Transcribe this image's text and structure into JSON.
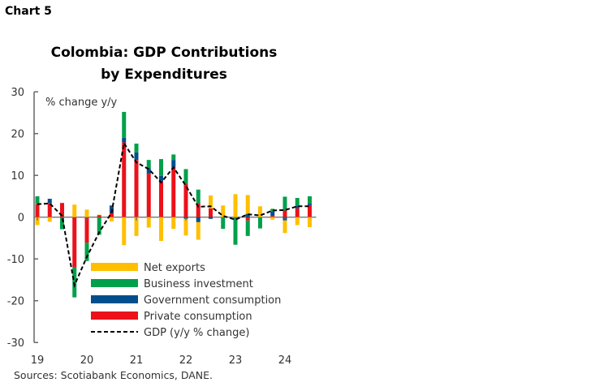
{
  "header": {
    "chart_label": "Chart 5"
  },
  "footer": {
    "sources": "Sources: Scotiabank Economics, DANE."
  },
  "chart_data": {
    "type": "bar",
    "stacked": true,
    "title_lines": [
      "Colombia: GDP Contributions",
      "by Expenditures"
    ],
    "ylabel": "% change y/y",
    "ylim": [
      -30,
      30
    ],
    "yticks": [
      30,
      20,
      10,
      0,
      -10,
      -20,
      -30
    ],
    "xtick_labels": [
      {
        "index": 0,
        "label": "19"
      },
      {
        "index": 4,
        "label": "20"
      },
      {
        "index": 8,
        "label": "21"
      },
      {
        "index": 12,
        "label": "22"
      },
      {
        "index": 16,
        "label": "23"
      },
      {
        "index": 20,
        "label": "24"
      }
    ],
    "categories": [
      "2019Q1",
      "2019Q2",
      "2019Q3",
      "2019Q4",
      "2020Q1",
      "2020Q2",
      "2020Q3",
      "2020Q4",
      "2021Q1",
      "2021Q2",
      "2021Q3",
      "2021Q4",
      "2022Q1",
      "2022Q2",
      "2022Q3",
      "2022Q4",
      "2023Q1",
      "2023Q2",
      "2023Q3",
      "2023Q4",
      "2024Q1",
      "2024Q2",
      "2024Q3"
    ],
    "series": [
      {
        "name": "Net exports",
        "color": "#FFBF00",
        "values": [
          -1.9,
          -1.1,
          0,
          3.0,
          1.8,
          0.1,
          -1.0,
          -6.7,
          -4.5,
          -2.5,
          -5.7,
          -2.8,
          -4.0,
          -4.2,
          3.1,
          2.8,
          5.5,
          4.5,
          2.6,
          -0.6,
          -3.0,
          -1.9,
          -2.4
        ]
      },
      {
        "name": "Business investment",
        "color": "#00A04B",
        "values": [
          1.9,
          0,
          -2.9,
          -7.3,
          -4.4,
          -4.2,
          0,
          6.2,
          2.1,
          2.0,
          4.0,
          1.3,
          3.6,
          3.2,
          0,
          -2.8,
          -6.4,
          -3.7,
          -2.7,
          0.7,
          3.3,
          1.8,
          1.7
        ]
      },
      {
        "name": "Government consumption",
        "color": "#004F8C",
        "values": [
          0,
          1.0,
          0,
          0,
          0,
          0,
          1.8,
          1.1,
          1.8,
          1.3,
          1.3,
          1.8,
          -0.4,
          -1.2,
          -0.4,
          0,
          -0.2,
          0.8,
          0,
          1.0,
          -0.8,
          0.7,
          0.4
        ]
      },
      {
        "name": "Private consumption",
        "color": "#EC111A",
        "values": [
          3.1,
          3.4,
          3.4,
          -11.9,
          -6.1,
          0.5,
          1.0,
          17.9,
          13.7,
          10.4,
          8.6,
          11.9,
          7.9,
          3.4,
          2.1,
          0,
          0,
          -0.8,
          0,
          0.3,
          1.6,
          2.1,
          2.9
        ]
      },
      {
        "name": "GDP (y/y % change)",
        "color": "#000000",
        "kind": "line",
        "values": [
          3.1,
          3.3,
          0.3,
          -16.3,
          -9.5,
          -3.6,
          1.1,
          17.7,
          13.1,
          11.5,
          8.3,
          11.9,
          7.5,
          2.5,
          2.6,
          0.3,
          -0.6,
          0.7,
          0.4,
          1.6,
          1.7,
          2.6,
          2.6
        ]
      }
    ],
    "legend": {
      "placement": "bottom-center inside",
      "order": [
        "Net exports",
        "Business investment",
        "Government consumption",
        "Private consumption",
        "GDP (y/y % change)"
      ]
    },
    "grid": false
  }
}
